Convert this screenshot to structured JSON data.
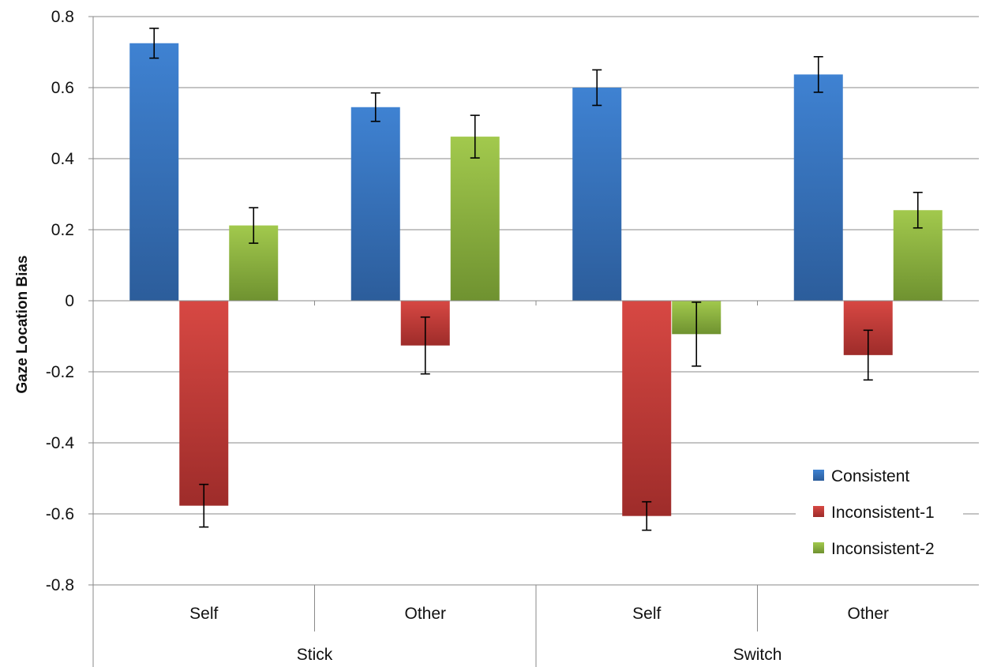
{
  "chart_data": {
    "type": "bar",
    "ylabel": "Gaze Location Bias",
    "ylim": [
      -0.8,
      0.8
    ],
    "yticks": [
      0.8,
      0.6,
      0.4,
      0.2,
      0,
      -0.2,
      -0.4,
      -0.6,
      -0.8
    ],
    "ytick_labels": [
      "0.8",
      "0.6",
      "0.4",
      "0.2",
      "0",
      "-0.2",
      "-0.4",
      "-0.6",
      "-0.8"
    ],
    "grid": true,
    "legend_position": "bottom-right",
    "groups": [
      "Stick",
      "Switch"
    ],
    "categories": [
      "Self",
      "Other",
      "Self",
      "Other"
    ],
    "series": [
      {
        "name": "Consistent",
        "color": "#3b78c4",
        "values": [
          0.725,
          0.545,
          0.6,
          0.637
        ],
        "errors": [
          0.042,
          0.04,
          0.05,
          0.05
        ]
      },
      {
        "name": "Inconsistent-1",
        "color": "#c23b38",
        "values": [
          -0.577,
          -0.126,
          -0.606,
          -0.153
        ],
        "errors": [
          0.06,
          0.08,
          0.04,
          0.07
        ]
      },
      {
        "name": "Inconsistent-2",
        "color": "#8db43f",
        "values": [
          0.212,
          0.462,
          -0.094,
          0.255
        ],
        "errors": [
          0.05,
          0.06,
          0.09,
          0.05
        ]
      }
    ]
  }
}
